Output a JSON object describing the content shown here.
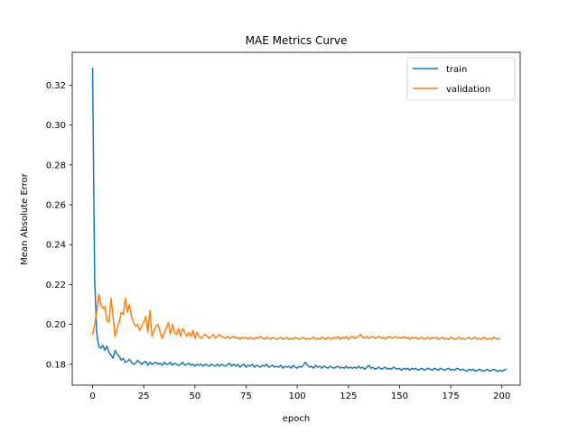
{
  "chart_data": {
    "type": "line",
    "title": "MAE Metrics Curve",
    "xlabel": "epoch",
    "ylabel": "Mean Absolute Error",
    "xlim": [
      -9.95,
      208.95
    ],
    "ylim": [
      0.1695,
      0.3365
    ],
    "xticks": [
      0,
      25,
      50,
      75,
      100,
      125,
      150,
      175,
      200
    ],
    "yticks": [
      0.18,
      0.2,
      0.22,
      0.24,
      0.26,
      0.28,
      0.3,
      0.32
    ],
    "ytick_labels": [
      "0.18",
      "0.20",
      "0.22",
      "0.24",
      "0.26",
      "0.28",
      "0.30",
      "0.32"
    ],
    "grid": false,
    "legend_position": "upper-right",
    "series": [
      {
        "name": "train",
        "color": "#1f77b4",
        "x_start": 0,
        "x_step": 1,
        "values": [
          0.3285,
          0.223,
          0.1955,
          0.189,
          0.188,
          0.1895,
          0.187,
          0.189,
          0.186,
          0.1845,
          0.183,
          0.187,
          0.185,
          0.184,
          0.182,
          0.183,
          0.181,
          0.1815,
          0.1825,
          0.181,
          0.18,
          0.1805,
          0.182,
          0.181,
          0.18,
          0.181,
          0.1815,
          0.1795,
          0.181,
          0.18,
          0.1805,
          0.181,
          0.18,
          0.1805,
          0.1795,
          0.181,
          0.18,
          0.18,
          0.181,
          0.1795,
          0.1805,
          0.18,
          0.1795,
          0.18,
          0.181,
          0.1795,
          0.18,
          0.1805,
          0.1795,
          0.18,
          0.179,
          0.18,
          0.1795,
          0.18,
          0.179,
          0.18,
          0.1795,
          0.179,
          0.18,
          0.1795,
          0.179,
          0.18,
          0.179,
          0.18,
          0.1795,
          0.179,
          0.18,
          0.1805,
          0.179,
          0.18,
          0.179,
          0.18,
          0.1785,
          0.1795,
          0.18,
          0.1785,
          0.1795,
          0.179,
          0.18,
          0.1785,
          0.1795,
          0.179,
          0.1785,
          0.1795,
          0.179,
          0.18,
          0.1785,
          0.179,
          0.1795,
          0.1785,
          0.179,
          0.1785,
          0.1795,
          0.178,
          0.179,
          0.1785,
          0.179,
          0.178,
          0.1795,
          0.1785,
          0.178,
          0.179,
          0.1785,
          0.1795,
          0.181,
          0.1795,
          0.1785,
          0.179,
          0.178,
          0.1795,
          0.1785,
          0.179,
          0.178,
          0.179,
          0.1785,
          0.178,
          0.179,
          0.1785,
          0.178,
          0.1785,
          0.179,
          0.178,
          0.1785,
          0.178,
          0.179,
          0.178,
          0.1785,
          0.178,
          0.1785,
          0.178,
          0.179,
          0.178,
          0.1785,
          0.1775,
          0.1785,
          0.1795,
          0.178,
          0.1785,
          0.1775,
          0.178,
          0.1785,
          0.1775,
          0.178,
          0.1785,
          0.1775,
          0.178,
          0.1775,
          0.1785,
          0.178,
          0.1775,
          0.178,
          0.177,
          0.178,
          0.1775,
          0.178,
          0.177,
          0.178,
          0.1775,
          0.178,
          0.177,
          0.1775,
          0.178,
          0.177,
          0.1775,
          0.178,
          0.1775,
          0.177,
          0.178,
          0.1775,
          0.177,
          0.178,
          0.1775,
          0.177,
          0.1775,
          0.178,
          0.177,
          0.1775,
          0.177,
          0.178,
          0.1775,
          0.177,
          0.1775,
          0.177,
          0.1765,
          0.1775,
          0.177,
          0.1775,
          0.1765,
          0.177,
          0.1775,
          0.177,
          0.1765,
          0.177,
          0.1775,
          0.1765,
          0.177,
          0.1775,
          0.177,
          0.1765,
          0.177,
          0.1765,
          0.177,
          0.1775
        ]
      },
      {
        "name": "validation",
        "color": "#ff7f0e",
        "x_start": 0,
        "x_step": 1,
        "values": [
          0.195,
          0.2,
          0.206,
          0.215,
          0.21,
          0.208,
          0.209,
          0.202,
          0.201,
          0.213,
          0.204,
          0.194,
          0.198,
          0.201,
          0.206,
          0.205,
          0.213,
          0.206,
          0.21,
          0.204,
          0.201,
          0.199,
          0.2,
          0.197,
          0.199,
          0.201,
          0.204,
          0.196,
          0.207,
          0.194,
          0.197,
          0.199,
          0.2,
          0.196,
          0.193,
          0.196,
          0.198,
          0.201,
          0.195,
          0.2,
          0.196,
          0.195,
          0.198,
          0.194,
          0.198,
          0.196,
          0.194,
          0.196,
          0.194,
          0.197,
          0.193,
          0.196,
          0.194,
          0.193,
          0.194,
          0.195,
          0.194,
          0.193,
          0.194,
          0.195,
          0.193,
          0.194,
          0.195,
          0.194,
          0.1935,
          0.193,
          0.194,
          0.193,
          0.1935,
          0.194,
          0.193,
          0.1935,
          0.1925,
          0.1935,
          0.193,
          0.1935,
          0.1925,
          0.1935,
          0.193,
          0.1925,
          0.1935,
          0.193,
          0.194,
          0.193,
          0.1925,
          0.1935,
          0.193,
          0.1925,
          0.1935,
          0.193,
          0.1925,
          0.193,
          0.1935,
          0.1925,
          0.193,
          0.1935,
          0.1925,
          0.193,
          0.1925,
          0.1935,
          0.193,
          0.1925,
          0.193,
          0.1935,
          0.1925,
          0.193,
          0.1925,
          0.193,
          0.1935,
          0.1925,
          0.193,
          0.1925,
          0.1935,
          0.193,
          0.1925,
          0.1935,
          0.193,
          0.1925,
          0.1935,
          0.193,
          0.194,
          0.1925,
          0.1935,
          0.193,
          0.194,
          0.1925,
          0.1935,
          0.194,
          0.193,
          0.1935,
          0.194,
          0.195,
          0.1935,
          0.193,
          0.194,
          0.193,
          0.1935,
          0.194,
          0.193,
          0.1935,
          0.194,
          0.193,
          0.1935,
          0.1925,
          0.1935,
          0.194,
          0.193,
          0.1935,
          0.194,
          0.193,
          0.1935,
          0.193,
          0.194,
          0.193,
          0.1935,
          0.1925,
          0.1935,
          0.193,
          0.1935,
          0.1925,
          0.193,
          0.1935,
          0.1925,
          0.193,
          0.1935,
          0.1925,
          0.1935,
          0.193,
          0.1935,
          0.1925,
          0.193,
          0.1935,
          0.1925,
          0.193,
          0.1925,
          0.1935,
          0.193,
          0.1925,
          0.193,
          0.1935,
          0.1925,
          0.193,
          0.1925,
          0.193,
          0.1935,
          0.1925,
          0.193,
          0.1935,
          0.1925,
          0.193,
          0.1925,
          0.1935,
          0.193,
          0.1925,
          0.193,
          0.1925,
          0.1935,
          0.193,
          0.1925,
          0.193
        ]
      }
    ]
  }
}
